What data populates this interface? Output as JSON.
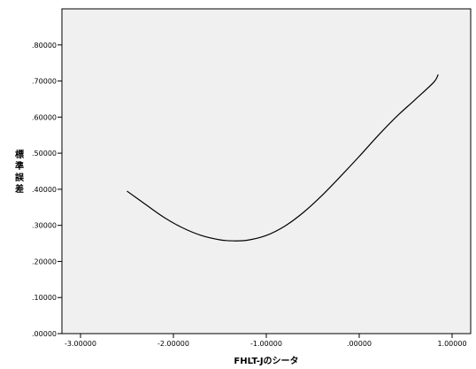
{
  "chart_data": {
    "type": "line",
    "xlabel": "FHLT-Jのシータ",
    "ylabel": "標準誤差",
    "xlim": [
      -3.2,
      1.2
    ],
    "ylim": [
      0,
      0.9
    ],
    "x_ticks": [
      -3,
      -2,
      -1,
      0,
      1
    ],
    "x_tick_labels": [
      "-3.00000",
      "-2.00000",
      "-1.00000",
      ".00000",
      "1.00000"
    ],
    "y_ticks": [
      0,
      0.1,
      0.2,
      0.3,
      0.4,
      0.5,
      0.6,
      0.7,
      0.8
    ],
    "y_tick_labels": [
      ".00000",
      ".10000",
      ".20000",
      ".30000",
      ".40000",
      ".50000",
      ".60000",
      ".70000",
      ".80000"
    ],
    "plot_background": "#f0f0f0",
    "line_color": "#000000",
    "grid": false,
    "series": [
      {
        "x": [
          -2.5,
          -2.3,
          -2.1,
          -1.9,
          -1.7,
          -1.5,
          -1.35,
          -1.2,
          -1.0,
          -0.8,
          -0.6,
          -0.4,
          -0.2,
          0.0,
          0.2,
          0.4,
          0.6,
          0.8,
          0.85
        ],
        "y": [
          0.395,
          0.358,
          0.322,
          0.293,
          0.272,
          0.26,
          0.257,
          0.259,
          0.272,
          0.298,
          0.336,
          0.383,
          0.436,
          0.491,
          0.548,
          0.601,
          0.648,
          0.696,
          0.718
        ]
      }
    ]
  }
}
